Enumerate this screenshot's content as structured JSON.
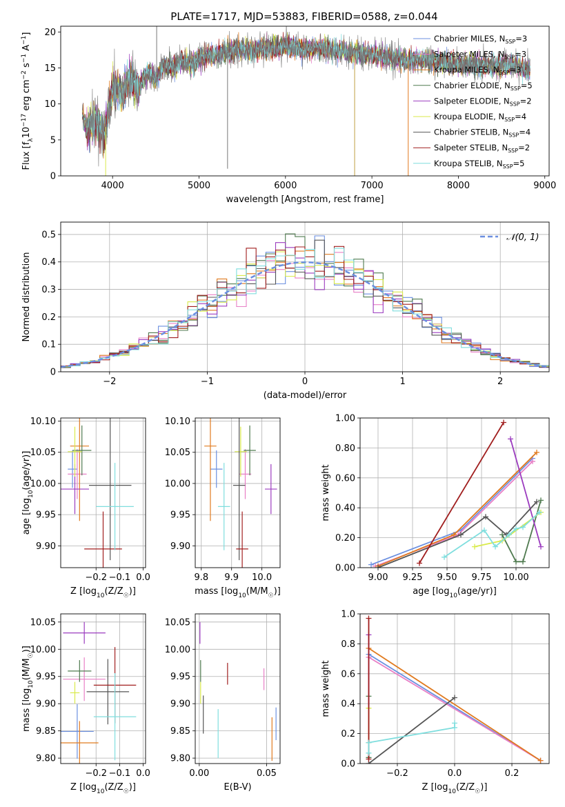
{
  "title": "PLATE=1717, MJD=53883, FIBERID=0588, z=0.044",
  "colors": {
    "Chabrier MILES": "#6b8fe0",
    "Salpeter MILES": "#e87fc6",
    "Kroupa MILES": "#e07a1f",
    "Chabrier ELODIE": "#4f7a4f",
    "Salpeter ELODIE": "#9b3bbf",
    "Kroupa ELODIE": "#d9ea4a",
    "Chabrier STELIB": "#555555",
    "Salpeter STELIB": "#a01d1d",
    "Kroupa STELIB": "#7fdede"
  },
  "chart_data": [
    {
      "id": "spectrum",
      "type": "line",
      "title": "PLATE=1717, MJD=53883, FIBERID=0588, z=0.044",
      "xlabel": "wavelength [Angstrom, rest frame]",
      "ylabel": "Flux [f_λ10^-17 erg cm^-2 s^-1 A^-1]",
      "xlim": [
        3400,
        9050
      ],
      "ylim": [
        0,
        20.8
      ],
      "xticks": [
        4000,
        5000,
        6000,
        7000,
        8000,
        9000
      ],
      "yticks": [
        0,
        5,
        10,
        15,
        20
      ],
      "grid": false,
      "legend_position": "top-right",
      "x": [
        3650,
        3700,
        3800,
        3900,
        4000,
        4100,
        4200,
        4300,
        4400,
        4500,
        4600,
        4700,
        4800,
        4900,
        5000,
        5200,
        5400,
        5600,
        5800,
        6000,
        6200,
        6400,
        6600,
        6800,
        7000,
        7200,
        7400,
        7600,
        7800,
        8000,
        8200,
        8400,
        8600,
        8800
      ],
      "y": [
        8.5,
        6.5,
        7.8,
        5.5,
        12.0,
        11.5,
        13.5,
        12.0,
        14.5,
        13.5,
        15.5,
        15.0,
        16.0,
        15.5,
        16.5,
        16.8,
        17.5,
        17.5,
        17.8,
        18.0,
        17.5,
        17.8,
        17.5,
        17.0,
        16.8,
        16.5,
        16.0,
        16.2,
        15.8,
        15.5,
        15.3,
        15.2,
        15.4,
        14.8
      ],
      "series": [
        {
          "name": "Chabrier MILES, N_SSP=3"
        },
        {
          "name": "Salpeter MILES, N_SSP=3"
        },
        {
          "name": "Kroupa MILES, N_SSP=3"
        },
        {
          "name": "Chabrier ELODIE, N_SSP=5"
        },
        {
          "name": "Salpeter ELODIE, N_SSP=2"
        },
        {
          "name": "Kroupa ELODIE, N_SSP=4"
        },
        {
          "name": "Chabrier STELIB, N_SSP=4"
        },
        {
          "name": "Salpeter STELIB, N_SSP=2"
        },
        {
          "name": "Kroupa STELIB, N_SSP=5"
        }
      ]
    },
    {
      "id": "residuals",
      "type": "line",
      "xlabel": "(data-model)/error",
      "ylabel": "Normed distribution",
      "xlim": [
        -2.5,
        2.5
      ],
      "ylim": [
        0,
        0.545
      ],
      "xticks": [
        -2,
        -1,
        0,
        1,
        2
      ],
      "yticks": [
        0.0,
        0.1,
        0.2,
        0.3,
        0.4,
        0.5
      ],
      "grid": true,
      "legend_position": "top-right",
      "reference": "N(0,1)",
      "bin_width": 0.1
    },
    {
      "id": "age-vs-Z",
      "type": "scatter",
      "xlabel": "Z [log10(Z/Z☉)]",
      "ylabel": "age  [log10(age/yr)]",
      "xlim": [
        -0.35,
        0.01
      ],
      "ylim": [
        9.865,
        10.105
      ],
      "xticks": [
        -0.2,
        -0.1,
        0.0
      ],
      "yticks": [
        9.9,
        9.95,
        10.0,
        10.05,
        10.1
      ],
      "grid": true,
      "points": [
        {
          "series": "Chabrier MILES",
          "x": -0.3,
          "xerr": 0.02,
          "y": 10.023,
          "yerr": 0.03
        },
        {
          "series": "Salpeter MILES",
          "x": -0.28,
          "xerr": 0.04,
          "y": 10.015,
          "yerr": 0.04
        },
        {
          "series": "Kroupa MILES",
          "x": -0.27,
          "xerr": 0.04,
          "y": 10.06,
          "yerr": 0.12
        },
        {
          "series": "Chabrier ELODIE",
          "x": -0.26,
          "xerr": 0.04,
          "y": 10.053,
          "yerr": 0.04
        },
        {
          "series": "Salpeter ELODIE",
          "x": -0.29,
          "xerr": 0.06,
          "y": 9.991,
          "yerr": 0.04
        },
        {
          "series": "Kroupa ELODIE",
          "x": -0.29,
          "xerr": 0.03,
          "y": 10.051,
          "yerr": 0.04
        },
        {
          "series": "Chabrier STELIB",
          "x": -0.14,
          "xerr": 0.09,
          "y": 9.997,
          "yerr": 0.12
        },
        {
          "series": "Salpeter STELIB",
          "x": -0.17,
          "xerr": 0.08,
          "y": 9.895,
          "yerr": 0.06
        },
        {
          "series": "Kroupa STELIB",
          "x": -0.12,
          "xerr": 0.08,
          "y": 9.963,
          "yerr": 0.07
        }
      ]
    },
    {
      "id": "age-vs-mass",
      "type": "scatter",
      "xlabel": "mass [log10(M/M☉)]",
      "ylabel": "",
      "xlim": [
        9.78,
        10.06
      ],
      "ylim": [
        9.865,
        10.105
      ],
      "xticks": [
        9.8,
        9.9,
        10.0
      ],
      "yticks": [
        9.9,
        9.95,
        10.0,
        10.05,
        10.1
      ],
      "grid": true,
      "points": [
        {
          "series": "Chabrier MILES",
          "x": 9.85,
          "xerr": 0.02,
          "y": 10.023,
          "yerr": 0.03
        },
        {
          "series": "Salpeter MILES",
          "x": 9.945,
          "xerr": 0.02,
          "y": 10.015,
          "yerr": 0.04
        },
        {
          "series": "Kroupa MILES",
          "x": 9.83,
          "xerr": 0.02,
          "y": 10.06,
          "yerr": 0.12
        },
        {
          "series": "Chabrier ELODIE",
          "x": 9.96,
          "xerr": 0.02,
          "y": 10.053,
          "yerr": 0.04
        },
        {
          "series": "Salpeter ELODIE",
          "x": 10.03,
          "xerr": 0.02,
          "y": 9.991,
          "yerr": 0.04
        },
        {
          "series": "Kroupa ELODIE",
          "x": 9.93,
          "xerr": 0.02,
          "y": 10.051,
          "yerr": 0.04
        },
        {
          "series": "Chabrier STELIB",
          "x": 9.925,
          "xerr": 0.02,
          "y": 9.997,
          "yerr": 0.12
        },
        {
          "series": "Salpeter STELIB",
          "x": 9.935,
          "xerr": 0.02,
          "y": 9.895,
          "yerr": 0.06
        },
        {
          "series": "Kroupa STELIB",
          "x": 9.875,
          "xerr": 0.02,
          "y": 9.963,
          "yerr": 0.07
        }
      ]
    },
    {
      "id": "weight-vs-age",
      "type": "line",
      "xlabel": "age  [log10(age/yr)]",
      "ylabel": "mass weight",
      "xlim": [
        8.87,
        10.24
      ],
      "ylim": [
        0.0,
        1.0
      ],
      "xticks": [
        9.0,
        9.25,
        9.5,
        9.75,
        10.0
      ],
      "yticks": [
        0.0,
        0.2,
        0.4,
        0.6,
        0.8,
        1.0
      ],
      "grid": true,
      "series": [
        {
          "series": "Chabrier MILES",
          "x": [
            8.95,
            9.6,
            10.12
          ],
          "y": [
            0.02,
            0.25,
            0.73
          ]
        },
        {
          "series": "Salpeter MILES",
          "x": [
            8.98,
            9.58,
            10.12
          ],
          "y": [
            0.01,
            0.22,
            0.71
          ]
        },
        {
          "series": "Kroupa MILES",
          "x": [
            9.0,
            9.55,
            10.15
          ],
          "y": [
            0.01,
            0.22,
            0.77
          ]
        },
        {
          "series": "Chabrier ELODIE",
          "x": [
            9.9,
            10.0,
            10.05,
            10.18
          ],
          "y": [
            0.22,
            0.04,
            0.04,
            0.45
          ]
        },
        {
          "series": "Salpeter ELODIE",
          "x": [
            9.96,
            10.18
          ],
          "y": [
            0.86,
            0.14
          ]
        },
        {
          "series": "Kroupa ELODIE",
          "x": [
            9.7,
            9.9,
            10.18
          ],
          "y": [
            0.14,
            0.18,
            0.37
          ]
        },
        {
          "series": "Chabrier STELIB",
          "x": [
            9.0,
            9.6,
            9.78,
            9.93,
            10.15
          ],
          "y": [
            0.0,
            0.22,
            0.34,
            0.22,
            0.44
          ]
        },
        {
          "series": "Salpeter STELIB",
          "x": [
            9.3,
            9.91
          ],
          "y": [
            0.03,
            0.97
          ]
        },
        {
          "series": "Kroupa STELIB",
          "x": [
            9.48,
            9.77,
            9.85,
            9.95,
            10.0,
            10.05,
            10.17
          ],
          "y": [
            0.07,
            0.25,
            0.14,
            0.22,
            0.26,
            0.27,
            0.37
          ]
        }
      ]
    },
    {
      "id": "mass-vs-Z",
      "type": "scatter",
      "xlabel": "Z [log10(Z/Z☉)]",
      "ylabel": "mass [log10(M/M☉)]",
      "xlim": [
        -0.35,
        0.01
      ],
      "ylim": [
        9.79,
        10.065
      ],
      "xticks": [
        -0.2,
        -0.1,
        0.0
      ],
      "yticks": [
        9.8,
        9.85,
        9.9,
        9.95,
        10.0,
        10.05
      ],
      "grid": true,
      "points": [
        {
          "series": "Chabrier MILES",
          "x": -0.28,
          "xerr": 0.07,
          "y": 9.849,
          "yerr": 0.05
        },
        {
          "series": "Salpeter MILES",
          "x": -0.25,
          "xerr": 0.09,
          "y": 9.945,
          "yerr": 0.04
        },
        {
          "series": "Kroupa MILES",
          "x": -0.27,
          "xerr": 0.08,
          "y": 9.828,
          "yerr": 0.04
        },
        {
          "series": "Chabrier ELODIE",
          "x": -0.27,
          "xerr": 0.05,
          "y": 9.96,
          "yerr": 0.02
        },
        {
          "series": "Salpeter ELODIE",
          "x": -0.25,
          "xerr": 0.09,
          "y": 10.03,
          "yerr": 0.02
        },
        {
          "series": "Kroupa ELODIE",
          "x": -0.29,
          "xerr": 0.02,
          "y": 9.92,
          "yerr": 0.02
        },
        {
          "series": "Chabrier STELIB",
          "x": -0.15,
          "xerr": 0.09,
          "y": 9.922,
          "yerr": 0.06
        },
        {
          "series": "Salpeter STELIB",
          "x": -0.12,
          "xerr": 0.09,
          "y": 9.934,
          "yerr": 0.07
        },
        {
          "series": "Kroupa STELIB",
          "x": -0.12,
          "xerr": 0.09,
          "y": 9.876,
          "yerr": 0.08
        }
      ]
    },
    {
      "id": "mass-vs-EBV",
      "type": "scatter",
      "xlabel": "E(B-V)",
      "ylabel": "",
      "xlim": [
        -0.003,
        0.06
      ],
      "ylim": [
        9.79,
        10.065
      ],
      "xticks": [
        0.0,
        0.05
      ],
      "yticks": [
        9.8,
        9.85,
        9.9,
        9.95,
        10.0,
        10.05
      ],
      "grid": true,
      "points": [
        {
          "series": "Chabrier MILES",
          "x": 0.057,
          "y": 9.863,
          "yerr": 0.03
        },
        {
          "series": "Salpeter MILES",
          "x": 0.048,
          "y": 9.945,
          "yerr": 0.02
        },
        {
          "series": "Kroupa MILES",
          "x": 0.054,
          "y": 9.835,
          "yerr": 0.04
        },
        {
          "series": "Chabrier ELODIE",
          "x": 0.001,
          "y": 9.96,
          "yerr": 0.02
        },
        {
          "series": "Salpeter ELODIE",
          "x": 0.0005,
          "y": 10.03,
          "yerr": 0.02
        },
        {
          "series": "Kroupa ELODIE",
          "x": 0.001,
          "y": 9.92,
          "yerr": 0.02
        },
        {
          "series": "Chabrier STELIB",
          "x": 0.003,
          "y": 9.88,
          "yerr": 0.035
        },
        {
          "series": "Salpeter STELIB",
          "x": 0.021,
          "y": 9.955,
          "yerr": 0.02
        },
        {
          "series": "Kroupa STELIB",
          "x": 0.014,
          "y": 9.845,
          "yerr": 0.045
        }
      ]
    },
    {
      "id": "weight-vs-Z",
      "type": "line",
      "xlabel": "Z [log10(Z/Z☉)]",
      "ylabel": "mass weight",
      "xlim": [
        -0.33,
        0.33
      ],
      "ylim": [
        0.0,
        1.0
      ],
      "xticks": [
        -0.2,
        0.0,
        0.2
      ],
      "yticks": [
        0.0,
        0.2,
        0.4,
        0.6,
        0.8,
        1.0
      ],
      "grid": true,
      "series": [
        {
          "series": "Chabrier MILES",
          "x": [
            -0.3,
            0.3
          ],
          "y": [
            0.73,
            0.02
          ]
        },
        {
          "series": "Salpeter MILES",
          "x": [
            -0.3,
            0.3
          ],
          "y": [
            0.71,
            0.02
          ]
        },
        {
          "series": "Kroupa MILES",
          "x": [
            -0.3,
            0.3
          ],
          "y": [
            0.77,
            0.02
          ]
        },
        {
          "series": "Chabrier ELODIE",
          "x": [
            -0.3,
            -0.3
          ],
          "y": [
            0.04,
            0.45
          ]
        },
        {
          "series": "Salpeter ELODIE",
          "x": [
            -0.3,
            -0.3
          ],
          "y": [
            0.14,
            0.86
          ]
        },
        {
          "series": "Kroupa ELODIE",
          "x": [
            -0.3,
            -0.3
          ],
          "y": [
            0.14,
            0.37
          ]
        },
        {
          "series": "Chabrier STELIB",
          "x": [
            -0.3,
            0.0
          ],
          "y": [
            0.0,
            0.44
          ]
        },
        {
          "series": "Salpeter STELIB",
          "x": [
            -0.3,
            -0.3
          ],
          "y": [
            0.03,
            0.97
          ]
        },
        {
          "series": "Kroupa STELIB",
          "x": [
            -0.3,
            -0.3,
            0.0,
            0.0
          ],
          "y": [
            0.07,
            0.14,
            0.24,
            0.27
          ]
        }
      ]
    }
  ]
}
